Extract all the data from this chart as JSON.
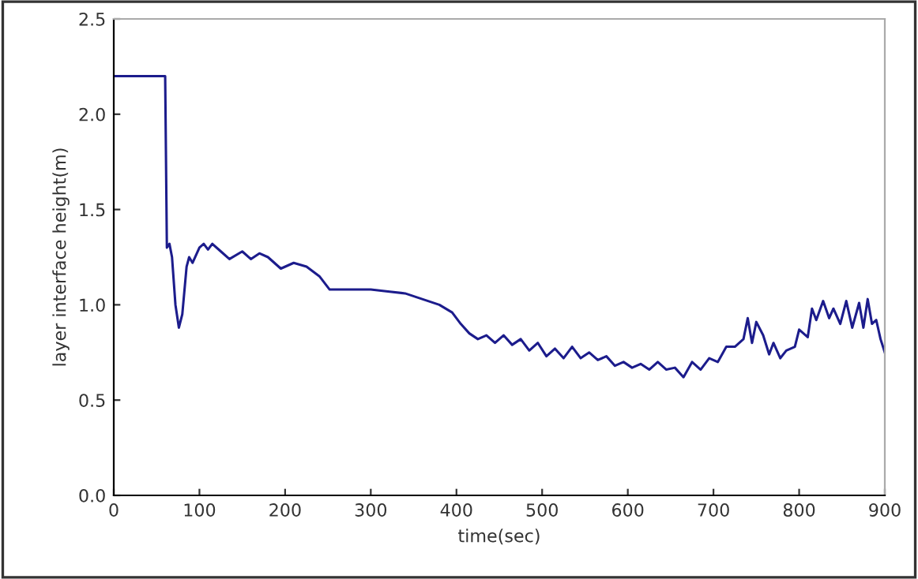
{
  "chart_data": {
    "type": "line",
    "xlabel": "time(sec)",
    "ylabel": "layer interface height(m)",
    "xlim": [
      0,
      900
    ],
    "ylim": [
      0,
      2.5
    ],
    "xticks": [
      0,
      100,
      200,
      300,
      400,
      500,
      600,
      700,
      800,
      900
    ],
    "yticks": [
      {
        "value": 0,
        "label": "0.0"
      },
      {
        "value": 0.5,
        "label": "0.5"
      },
      {
        "value": 1,
        "label": "1.0"
      },
      {
        "value": 1.5,
        "label": "1.5"
      },
      {
        "value": 2,
        "label": "2.0"
      },
      {
        "value": 2.5,
        "label": "2.5"
      }
    ],
    "grid": false,
    "marker": "none",
    "line_style": "solid",
    "series": [
      {
        "color": "#1c1c8c",
        "x": [
          0,
          60,
          62,
          65,
          68,
          72,
          76,
          80,
          85,
          88,
          92,
          100,
          105,
          110,
          115,
          125,
          135,
          150,
          160,
          170,
          180,
          195,
          210,
          225,
          240,
          252,
          270,
          300,
          320,
          340,
          360,
          380,
          395,
          405,
          415,
          425,
          435,
          445,
          455,
          465,
          475,
          485,
          495,
          505,
          515,
          525,
          535,
          545,
          555,
          565,
          575,
          585,
          595,
          605,
          615,
          625,
          635,
          645,
          655,
          665,
          675,
          685,
          695,
          705,
          715,
          725,
          735,
          740,
          745,
          750,
          758,
          765,
          770,
          778,
          785,
          795,
          800,
          810,
          815,
          820,
          828,
          835,
          840,
          848,
          855,
          862,
          870,
          875,
          880,
          885,
          890,
          895,
          900
        ],
        "values": [
          2.2,
          2.2,
          1.3,
          1.32,
          1.25,
          1.0,
          0.88,
          0.95,
          1.2,
          1.25,
          1.22,
          1.3,
          1.32,
          1.29,
          1.32,
          1.28,
          1.24,
          1.28,
          1.24,
          1.27,
          1.25,
          1.19,
          1.22,
          1.2,
          1.15,
          1.08,
          1.08,
          1.08,
          1.07,
          1.06,
          1.03,
          1.0,
          0.96,
          0.9,
          0.85,
          0.82,
          0.84,
          0.8,
          0.84,
          0.79,
          0.82,
          0.76,
          0.8,
          0.73,
          0.77,
          0.72,
          0.78,
          0.72,
          0.75,
          0.71,
          0.73,
          0.68,
          0.7,
          0.67,
          0.69,
          0.66,
          0.7,
          0.66,
          0.67,
          0.62,
          0.7,
          0.66,
          0.72,
          0.7,
          0.78,
          0.78,
          0.82,
          0.93,
          0.8,
          0.91,
          0.84,
          0.74,
          0.8,
          0.72,
          0.76,
          0.78,
          0.87,
          0.83,
          0.98,
          0.92,
          1.02,
          0.93,
          0.98,
          0.9,
          1.02,
          0.88,
          1.01,
          0.88,
          1.03,
          0.9,
          0.92,
          0.82,
          0.75
        ]
      }
    ]
  }
}
